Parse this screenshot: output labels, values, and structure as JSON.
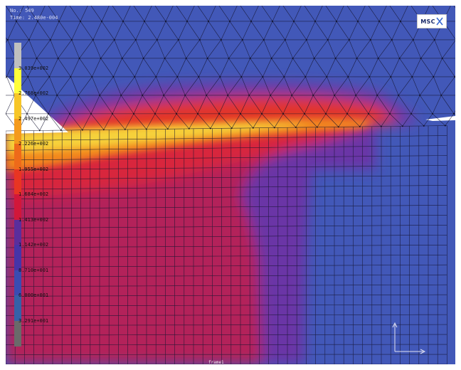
{
  "header": {
    "increment": "No.: 549",
    "time": "Time: 2.480e-004"
  },
  "logo": {
    "text": "MSC",
    "mark": "x-mark-icon"
  },
  "legend": {
    "labels": [
      "3.039e+002",
      "2.768e+002",
      "2.497e+002",
      "2.226e+002",
      "1.955e+002",
      "1.684e+002",
      "1.413e+002",
      "1.142e+002",
      "8.710e+001",
      "6.000e+001",
      "3.291e+001"
    ],
    "colors": [
      "#bfbfbf",
      "#ffff3a",
      "#f7c628",
      "#f49a1c",
      "#ee6a1a",
      "#e83522",
      "#d2173a",
      "#5a2e9c",
      "#4634a8",
      "#3a4cb2",
      "#3561a8",
      "#6a6a6a"
    ]
  },
  "frame_label": "frame1",
  "colors": {
    "background": "#3f55b7",
    "cold_blue": "#4258b8",
    "violet": "#6436a6",
    "crimson": "#b3225a",
    "hot_red": "#e52a24",
    "orange": "#f2881c",
    "yellow": "#f6d23a",
    "mesh_line": "#151530",
    "tool_white": "#ffffff"
  }
}
